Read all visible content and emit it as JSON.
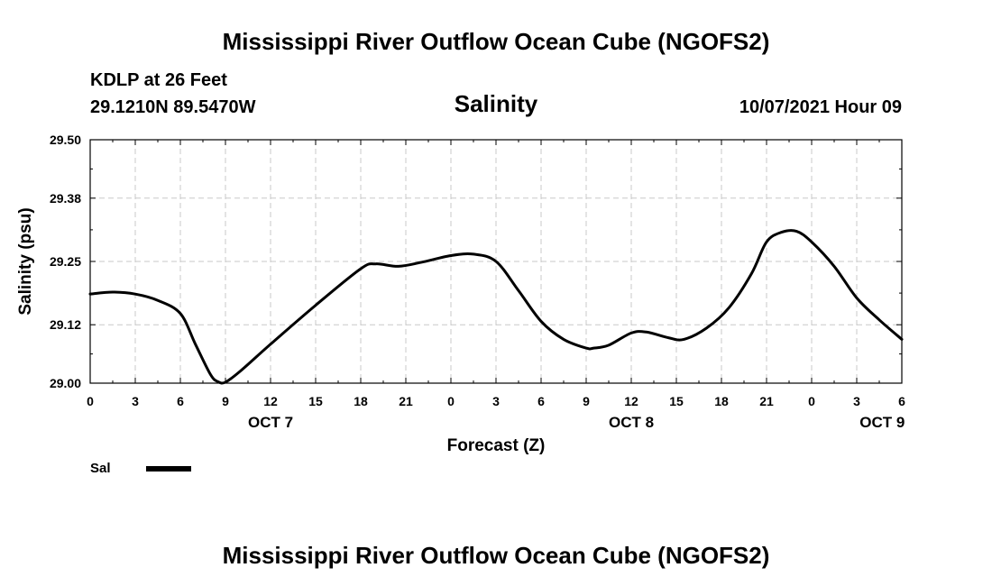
{
  "chart_data": {
    "type": "line",
    "title": "Mississippi River Outflow Ocean Cube (NGOFS2)",
    "footer_title": "Mississippi River Outflow Ocean Cube (NGOFS2)",
    "station": "KDLP at 26 Feet",
    "coords": "29.1210N  89.5470W",
    "variable": "Salinity",
    "timestamp": "10/07/2021 Hour 09",
    "xlabel": "Forecast (Z)",
    "ylabel": "Salinity (psu)",
    "ylim": [
      29.0,
      29.5
    ],
    "y_ticks": [
      "29.00",
      "29.12",
      "29.25",
      "29.38",
      "29.50"
    ],
    "xlim": [
      0,
      54
    ],
    "x_ticks": [
      {
        "hour": 0,
        "label": "0"
      },
      {
        "hour": 3,
        "label": "3"
      },
      {
        "hour": 6,
        "label": "6"
      },
      {
        "hour": 9,
        "label": "9"
      },
      {
        "hour": 12,
        "label": "12"
      },
      {
        "hour": 15,
        "label": "15"
      },
      {
        "hour": 18,
        "label": "18"
      },
      {
        "hour": 21,
        "label": "21"
      },
      {
        "hour": 24,
        "label": "0"
      },
      {
        "hour": 27,
        "label": "3"
      },
      {
        "hour": 30,
        "label": "6"
      },
      {
        "hour": 33,
        "label": "9"
      },
      {
        "hour": 36,
        "label": "12"
      },
      {
        "hour": 39,
        "label": "15"
      },
      {
        "hour": 42,
        "label": "18"
      },
      {
        "hour": 45,
        "label": "21"
      },
      {
        "hour": 48,
        "label": "0"
      },
      {
        "hour": 51,
        "label": "3"
      },
      {
        "hour": 54,
        "label": "6"
      }
    ],
    "date_labels": [
      {
        "hour": 12,
        "label": "OCT 7"
      },
      {
        "hour": 36,
        "label": "OCT 8"
      },
      {
        "hour": 52.7,
        "label": "OCT 9"
      }
    ],
    "grid": true,
    "legend": "bottom-left",
    "series": [
      {
        "name": "Sal",
        "x": [
          0,
          1.5,
          3,
          4.5,
          6,
          7,
          8,
          8.5,
          9,
          10,
          12,
          15,
          18,
          19,
          20.5,
          22,
          24,
          25.5,
          27,
          28.5,
          30,
          31.5,
          33,
          33.5,
          34.5,
          36,
          37,
          38.5,
          39.5,
          41,
          42.5,
          44,
          45,
          46,
          47,
          48,
          49.5,
          51,
          52.5,
          54
        ],
        "values": [
          29.183,
          29.187,
          29.183,
          29.17,
          29.143,
          29.08,
          29.018,
          29.003,
          29.002,
          29.025,
          29.08,
          29.16,
          29.235,
          29.245,
          29.24,
          29.248,
          29.262,
          29.265,
          29.25,
          29.19,
          29.127,
          29.09,
          29.072,
          29.072,
          29.078,
          29.103,
          29.105,
          29.093,
          29.09,
          29.113,
          29.155,
          29.225,
          29.29,
          29.31,
          29.312,
          29.29,
          29.24,
          29.175,
          29.13,
          29.09
        ]
      }
    ]
  }
}
